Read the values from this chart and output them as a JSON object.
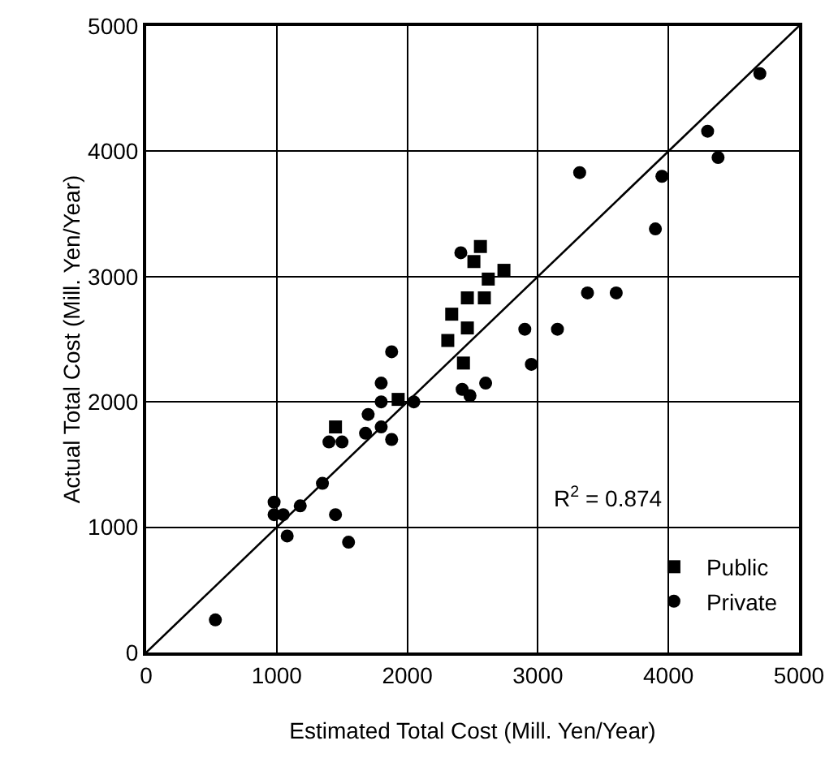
{
  "chart_data": {
    "type": "scatter",
    "xlabel": "Estimated Total Cost (Mill. Yen/Year)",
    "ylabel": "Actual Total Cost (Mill. Yen/Year)",
    "xlim": [
      0,
      5000
    ],
    "ylim": [
      0,
      5000
    ],
    "xticks": [
      0,
      1000,
      2000,
      3000,
      4000,
      5000
    ],
    "yticks": [
      0,
      1000,
      2000,
      3000,
      4000,
      5000
    ],
    "grid": true,
    "legend": "bottom right",
    "annotations": [
      "R$^{2}$ = 0.874"
    ],
    "series": [
      {
        "name": "Public",
        "color": "#000000",
        "marker": "square",
        "x": [
          1450,
          1930,
          2310,
          2430,
          2340,
          2460,
          2460,
          2590,
          2620,
          2740,
          2510,
          2560
        ],
        "values": [
          1800,
          2020,
          2490,
          2310,
          2700,
          2590,
          2830,
          2830,
          2980,
          3050,
          3120,
          3240
        ]
      },
      {
        "name": "Private",
        "color": "#000000",
        "marker": "circle",
        "x": [
          530,
          980,
          980,
          1050,
          1080,
          1180,
          1350,
          1450,
          1500,
          1400,
          1550,
          1680,
          1700,
          1800,
          1800,
          1800,
          1880,
          1880,
          2050,
          2420,
          2480,
          2600,
          2410,
          2900,
          2950,
          3150,
          3320,
          3380,
          3600,
          3900,
          3950,
          4300,
          4380,
          4700
        ],
        "values": [
          260,
          1200,
          1100,
          1100,
          930,
          1170,
          1350,
          1100,
          1680,
          1680,
          880,
          1750,
          1900,
          1800,
          2000,
          2150,
          2400,
          1700,
          2000,
          2100,
          2050,
          2150,
          3190,
          2580,
          2300,
          2580,
          3830,
          2870,
          2870,
          3380,
          3800,
          4160,
          3950,
          4620
        ]
      },
      {
        "type": "line",
        "color": "#000000",
        "marker": "none",
        "x": [
          0,
          5000
        ],
        "values": [
          0,
          5000
        ]
      }
    ]
  }
}
